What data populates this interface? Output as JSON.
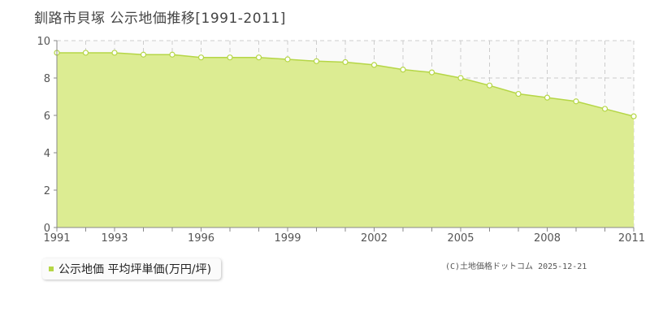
{
  "title": "釧路市貝塚 公示地価推移[1991-2011]",
  "legend": {
    "label": "公示地価 平均坪単価(万円/坪)"
  },
  "credit": "(C)土地価格ドットコム 2025-12-21",
  "colors": {
    "fill": "#dcec92",
    "line": "#b5d646",
    "grid": "#cccccc",
    "axis": "#888888",
    "marker_fill": "#ffffff"
  },
  "chart_data": {
    "type": "area",
    "title": "釧路市貝塚 公示地価推移[1991-2011]",
    "xlabel": "",
    "ylabel": "",
    "x": [
      1991,
      1992,
      1993,
      1994,
      1995,
      1996,
      1997,
      1998,
      1999,
      2000,
      2001,
      2002,
      2003,
      2004,
      2005,
      2006,
      2007,
      2008,
      2009,
      2010,
      2011
    ],
    "series": [
      {
        "name": "公示地価 平均坪単価(万円/坪)",
        "values": [
          9.35,
          9.35,
          9.35,
          9.25,
          9.25,
          9.1,
          9.1,
          9.1,
          9.0,
          8.9,
          8.85,
          8.7,
          8.45,
          8.3,
          8.0,
          7.6,
          7.15,
          6.95,
          6.75,
          6.35,
          5.95
        ]
      }
    ],
    "xlim": [
      1991,
      2011
    ],
    "ylim": [
      0,
      10
    ],
    "x_tick_labels": [
      "1991",
      "1993",
      "1996",
      "1999",
      "2002",
      "2005",
      "2008",
      "2011"
    ],
    "y_tick_labels": [
      "0",
      "2",
      "4",
      "6",
      "8",
      "10"
    ],
    "grid": true,
    "legend_position": "bottom-left"
  }
}
